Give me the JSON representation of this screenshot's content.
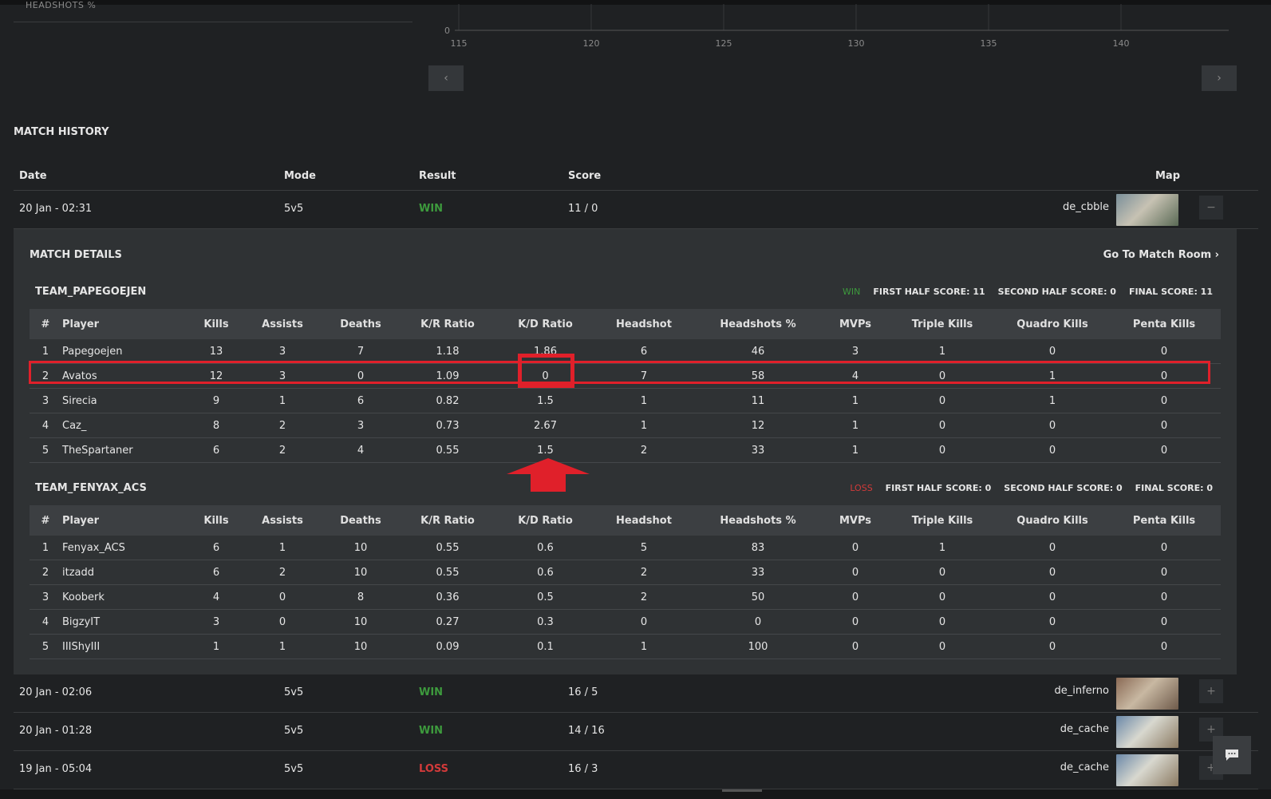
{
  "header": {
    "previous_label": "HEADSHOTS %"
  },
  "chart_data": {
    "type": "line",
    "x": [
      115,
      120,
      125,
      130,
      135,
      140
    ],
    "y_visible_tick": "0",
    "xlabel": "",
    "ylabel": "",
    "grid": true
  },
  "chart_nav": {
    "prev": "‹",
    "next": "›"
  },
  "match_history": {
    "title": "MATCH HISTORY",
    "headers": {
      "date": "Date",
      "mode": "Mode",
      "result": "Result",
      "score": "Score",
      "map": "Map"
    },
    "rows": [
      {
        "date": "20 Jan - 02:31",
        "mode": "5v5",
        "result": "WIN",
        "score": "11 / 0",
        "map": "de_cbble",
        "toggle": "−"
      },
      {
        "date": "20 Jan - 02:06",
        "mode": "5v5",
        "result": "WIN",
        "score": "16 / 5",
        "map": "de_inferno",
        "toggle": "+"
      },
      {
        "date": "20 Jan - 01:28",
        "mode": "5v5",
        "result": "WIN",
        "score": "14 / 16",
        "map": "de_cache",
        "toggle": "+"
      },
      {
        "date": "19 Jan - 05:04",
        "mode": "5v5",
        "result": "LOSS",
        "score": "16 / 3",
        "map": "de_cache",
        "toggle": "+"
      }
    ]
  },
  "details": {
    "title": "MATCH DETAILS",
    "goto": "Go To Match Room  ›",
    "columns": [
      "#",
      "Player",
      "Kills",
      "Assists",
      "Deaths",
      "K/R Ratio",
      "K/D Ratio",
      "Headshot",
      "Headshots %",
      "MVPs",
      "Triple Kills",
      "Quadro Kills",
      "Penta Kills"
    ],
    "teams": [
      {
        "name": "TEAM_PAPEGOEJEN",
        "result": "WIN",
        "first_half": "FIRST HALF SCORE: 11",
        "second_half": "SECOND HALF SCORE: 0",
        "final": "FINAL SCORE: 11",
        "players": [
          [
            "1",
            "Papegoejen",
            "13",
            "3",
            "7",
            "1.18",
            "1.86",
            "6",
            "46",
            "3",
            "1",
            "0",
            "0"
          ],
          [
            "2",
            "Avatos",
            "12",
            "3",
            "0",
            "1.09",
            "0",
            "7",
            "58",
            "4",
            "0",
            "1",
            "0"
          ],
          [
            "3",
            "Sirecia",
            "9",
            "1",
            "6",
            "0.82",
            "1.5",
            "1",
            "11",
            "1",
            "0",
            "1",
            "0"
          ],
          [
            "4",
            "Caz_",
            "8",
            "2",
            "3",
            "0.73",
            "2.67",
            "1",
            "12",
            "1",
            "0",
            "0",
            "0"
          ],
          [
            "5",
            "TheSpartaner",
            "6",
            "2",
            "4",
            "0.55",
            "1.5",
            "2",
            "33",
            "1",
            "0",
            "0",
            "0"
          ]
        ]
      },
      {
        "name": "TEAM_FENYAX_ACS",
        "result": "LOSS",
        "first_half": "FIRST HALF SCORE: 0",
        "second_half": "SECOND HALF SCORE: 0",
        "final": "FINAL SCORE: 0",
        "players": [
          [
            "1",
            "Fenyax_ACS",
            "6",
            "1",
            "10",
            "0.55",
            "0.6",
            "5",
            "83",
            "0",
            "1",
            "0",
            "0"
          ],
          [
            "2",
            "itzadd",
            "6",
            "2",
            "10",
            "0.55",
            "0.6",
            "2",
            "33",
            "0",
            "0",
            "0",
            "0"
          ],
          [
            "3",
            "Kooberk",
            "4",
            "0",
            "8",
            "0.36",
            "0.5",
            "2",
            "50",
            "0",
            "0",
            "0",
            "0"
          ],
          [
            "4",
            "BigzyIT",
            "3",
            "0",
            "10",
            "0.27",
            "0.3",
            "0",
            "0",
            "0",
            "0",
            "0",
            "0"
          ],
          [
            "5",
            "IIIShyIII",
            "1",
            "1",
            "10",
            "0.09",
            "0.1",
            "1",
            "100",
            "0",
            "0",
            "0",
            "0"
          ]
        ]
      }
    ]
  },
  "colors": {
    "win": "#3d9a3d",
    "loss": "#d23a3a",
    "highlight": "#e0202a",
    "panel": "#2f3234"
  }
}
